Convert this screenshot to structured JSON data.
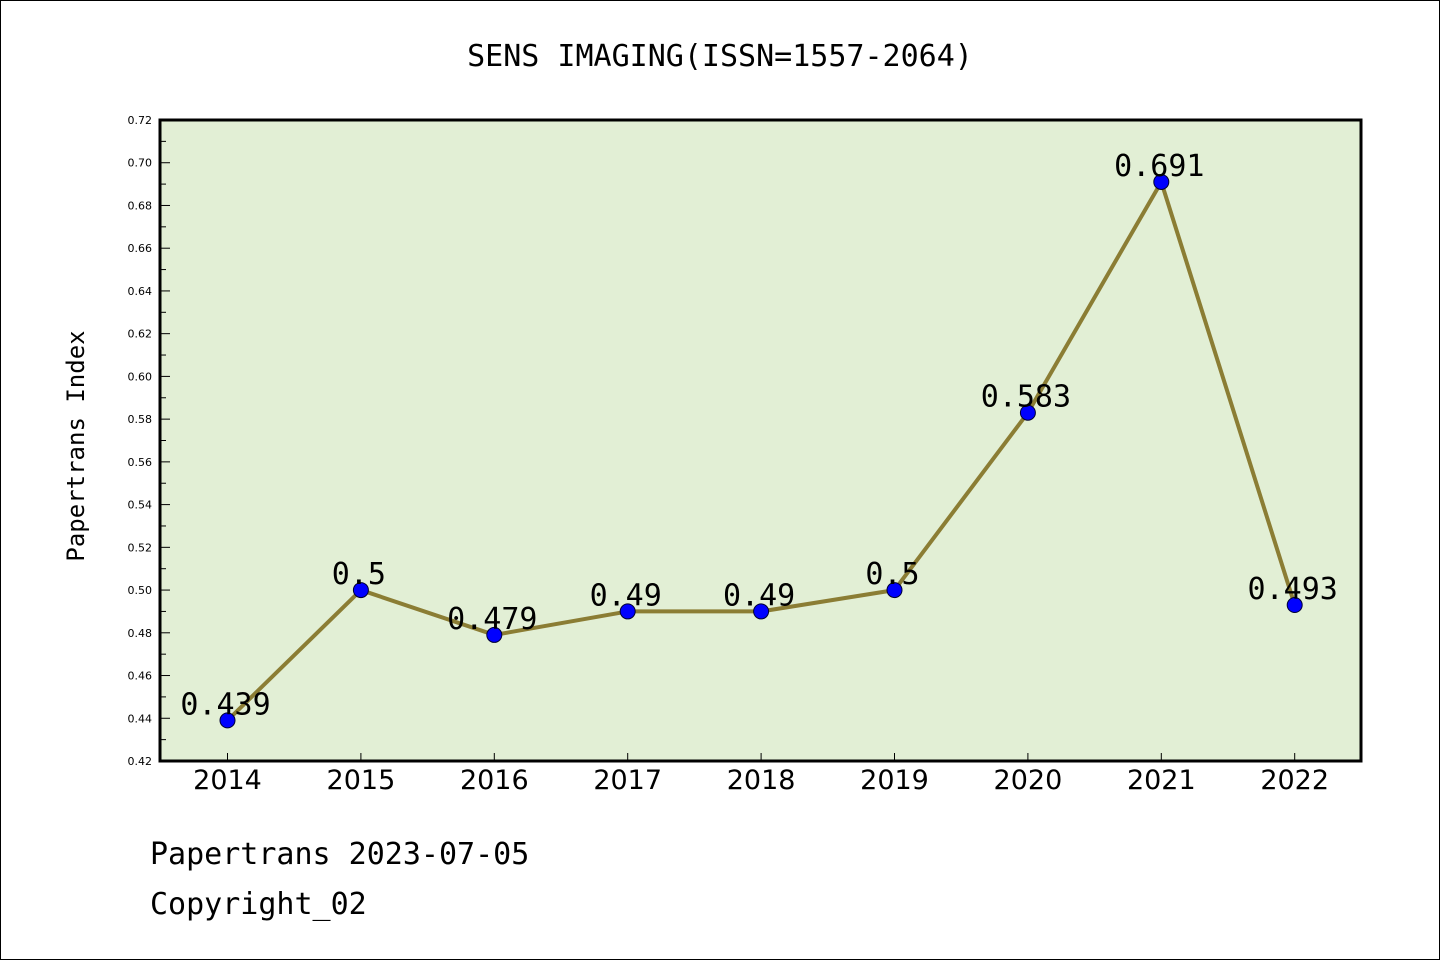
{
  "chart_data": {
    "type": "line",
    "title": "SENS IMAGING(ISSN=1557-2064)",
    "xlabel": "",
    "ylabel": "Papertrans Index",
    "categories": [
      "2014",
      "2015",
      "2016",
      "2017",
      "2018",
      "2019",
      "2020",
      "2021",
      "2022"
    ],
    "series": [
      {
        "values": [
          0.439,
          0.5,
          0.479,
          0.49,
          0.49,
          0.5,
          0.583,
          0.691,
          0.493
        ],
        "data_labels": [
          "0.439",
          "0.5",
          "0.479",
          "0.49",
          "0.49",
          "0.5",
          "0.583",
          "0.691",
          "0.493"
        ]
      }
    ],
    "ylim": [
      0.42,
      0.72
    ],
    "yticks": [
      "0.42",
      "0.44",
      "0.46",
      "0.48",
      "0.50",
      "0.52",
      "0.54",
      "0.56",
      "0.58",
      "0.60",
      "0.62",
      "0.64",
      "0.66",
      "0.68",
      "0.70",
      "0.72"
    ],
    "grid": false,
    "legend": "none"
  },
  "footer": {
    "line1": "Papertrans 2023-07-05",
    "line2": "Copyright_02"
  },
  "colors": {
    "plot_background": "#e2efd5",
    "line": "#8b7d34",
    "marker": "#0000ff",
    "axes": "#000000"
  }
}
